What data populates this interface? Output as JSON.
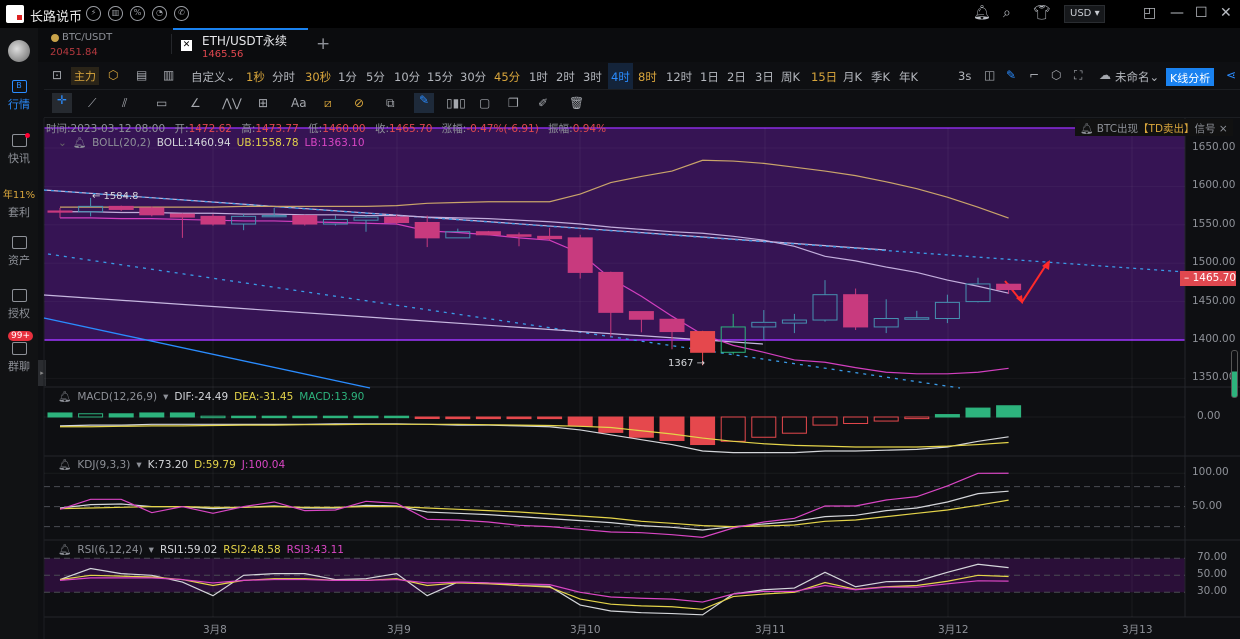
{
  "app": {
    "name": "长路说币",
    "currency": "USD"
  },
  "sidebar": {
    "items": [
      {
        "label": "行情",
        "active": true
      },
      {
        "label": "快讯",
        "dot": true
      },
      {
        "label": "套利",
        "badge": "年11%"
      },
      {
        "label": "资产"
      },
      {
        "label": "授权"
      },
      {
        "label": "群聊",
        "badge": "99+"
      }
    ]
  },
  "tabs": [
    {
      "symbol": "BTC/USDT",
      "price": "20451.84",
      "active": false
    },
    {
      "symbol": "ETH/USDT永续",
      "price": "1465.56",
      "active": true
    }
  ],
  "toolbar": {
    "main_force": "主力",
    "custom": "自定义",
    "timeframes": [
      {
        "label": "1秒",
        "hl": true
      },
      {
        "label": "分时"
      },
      {
        "label": "30秒",
        "hl": true
      },
      {
        "label": "1分"
      },
      {
        "label": "5分"
      },
      {
        "label": "10分"
      },
      {
        "label": "15分"
      },
      {
        "label": "30分"
      },
      {
        "label": "45分",
        "hl": true
      },
      {
        "label": "1时"
      },
      {
        "label": "2时"
      },
      {
        "label": "3时"
      },
      {
        "label": "4时",
        "selected": true
      },
      {
        "label": "8时",
        "hl": true
      },
      {
        "label": "12时"
      },
      {
        "label": "1日"
      },
      {
        "label": "2日"
      },
      {
        "label": "3日"
      },
      {
        "label": "周K"
      },
      {
        "label": "15日",
        "hl": true
      },
      {
        "label": "月K"
      },
      {
        "label": "季K"
      },
      {
        "label": "年K"
      }
    ],
    "refresh": "3s",
    "layout_name": "未命名",
    "kline_analysis": "K线分析",
    "text_tool": "Aa"
  },
  "info": {
    "time_label": "时间:",
    "time": "2023-03-12 08:00",
    "open_label": "开:",
    "open": "1472.62",
    "high_label": "高:",
    "high": "1473.77",
    "low_label": "低:",
    "low": "1460.00",
    "close_label": "收:",
    "close": "1465.70",
    "change_label": "涨幅:",
    "change": "-0.47%(-6.91)",
    "amp_label": "振幅:",
    "amp": "0.94%"
  },
  "signal": {
    "pre": "BTC出现",
    "tag": "【TD卖出】",
    "post": "信号"
  },
  "indicators": {
    "boll": {
      "name": "BOLL(20,2)",
      "boll": "BOLL:1460.94",
      "ub": "UB:1558.78",
      "lb": "LB:1363.10"
    },
    "macd": {
      "name": "MACD(12,26,9)",
      "dif": "DIF:-24.49",
      "dea": "DEA:-31.45",
      "macd": "MACD:13.90"
    },
    "kdj": {
      "name": "KDJ(9,3,3)",
      "k": "K:73.20",
      "d": "D:59.79",
      "j": "J:100.04"
    },
    "rsi": {
      "name": "RSI(6,12,24)",
      "rsi1": "RSI1:59.02",
      "rsi2": "RSI2:48.58",
      "rsi3": "RSI3:43.11"
    }
  },
  "price_axis": [
    "1650.00",
    "1600.00",
    "1550.00",
    "1500.00",
    "1450.00",
    "1400.00",
    "1350.00"
  ],
  "last_price": "1465.70",
  "macd_axis": [
    "0.00"
  ],
  "kdj_axis": [
    "100.00",
    "50.00"
  ],
  "rsi_axis": [
    "70.00",
    "50.00",
    "30.00"
  ],
  "dates": [
    "3月8",
    "3月9",
    "3月10",
    "3月11",
    "3月12",
    "3月13"
  ],
  "annotations": {
    "high_mark": "← 1584.8",
    "low_mark": "1367 →"
  },
  "colors": {
    "up": "#2db37d",
    "down": "#e5484d",
    "accent": "#1a82f0",
    "zone": "#361454"
  },
  "chart_data": {
    "type": "candlestick",
    "interval": "4时",
    "ylim": [
      1340,
      1665
    ],
    "ohlc": [
      [
        1568,
        1572,
        1559,
        1567
      ],
      [
        1567,
        1585,
        1561,
        1574
      ],
      [
        1574,
        1575,
        1568,
        1570
      ],
      [
        1572,
        1574,
        1561,
        1563
      ],
      [
        1564,
        1565,
        1533,
        1560
      ],
      [
        1561,
        1564,
        1549,
        1551
      ],
      [
        1551,
        1564,
        1543,
        1561
      ],
      [
        1561,
        1572,
        1560,
        1562
      ],
      [
        1562,
        1563,
        1549,
        1551
      ],
      [
        1551,
        1562,
        1549,
        1557
      ],
      [
        1556,
        1562,
        1541,
        1560
      ],
      [
        1560,
        1563,
        1550,
        1553
      ],
      [
        1553,
        1562,
        1521,
        1533
      ],
      [
        1533,
        1545,
        1533,
        1541
      ],
      [
        1541,
        1542,
        1536,
        1537
      ],
      [
        1537,
        1540,
        1522,
        1535
      ],
      [
        1535,
        1546,
        1529,
        1532
      ],
      [
        1533,
        1537,
        1480,
        1488
      ],
      [
        1488,
        1489,
        1404,
        1436
      ],
      [
        1437,
        1437,
        1410,
        1427
      ],
      [
        1427,
        1428,
        1388,
        1411
      ],
      [
        1411,
        1412,
        1367,
        1384
      ],
      [
        1384,
        1434,
        1381,
        1417
      ],
      [
        1417,
        1439,
        1400,
        1423
      ],
      [
        1422,
        1434,
        1409,
        1426
      ],
      [
        1426,
        1478,
        1424,
        1459
      ],
      [
        1459,
        1467,
        1413,
        1417
      ],
      [
        1417,
        1453,
        1409,
        1428
      ],
      [
        1427,
        1438,
        1427,
        1429
      ],
      [
        1428,
        1459,
        1422,
        1449
      ],
      [
        1450,
        1481,
        1449,
        1473
      ],
      [
        1472.62,
        1473.77,
        1460.0,
        1465.7
      ]
    ],
    "boll_ub": [
      1573,
      1573,
      1573,
      1573,
      1573,
      1573,
      1574,
      1574,
      1574,
      1574,
      1574,
      1575,
      1578,
      1579,
      1580,
      1580,
      1580,
      1590,
      1605,
      1613,
      1620,
      1634,
      1633,
      1630,
      1625,
      1620,
      1614,
      1606,
      1597,
      1586,
      1573,
      1558.78
    ],
    "boll_mid": [
      1567,
      1567,
      1566,
      1566,
      1565,
      1565,
      1564,
      1564,
      1563,
      1563,
      1562,
      1562,
      1560,
      1559,
      1558,
      1556,
      1554,
      1551,
      1547,
      1544,
      1541,
      1539,
      1535,
      1530,
      1522,
      1509,
      1503,
      1495,
      1488,
      1478,
      1470,
      1460.94
    ],
    "boll_lb": [
      1559,
      1559,
      1558,
      1558,
      1557,
      1556,
      1555,
      1555,
      1554,
      1553,
      1552,
      1551,
      1542,
      1540,
      1537,
      1533,
      1530,
      1513,
      1480,
      1457,
      1431,
      1407,
      1393,
      1384,
      1374,
      1371,
      1364,
      1358,
      1356,
      1356,
      1358,
      1363.1
    ],
    "macd_hist": [
      5,
      4,
      4,
      5,
      5,
      1,
      1,
      1,
      1,
      1,
      1,
      1,
      -1,
      -2,
      -2,
      -2,
      -2,
      -11,
      -19,
      -25,
      -29,
      -34,
      -30,
      -25,
      -20,
      -10,
      -8,
      -5,
      -2,
      3,
      11,
      13.9
    ],
    "dif": [
      -11,
      -10,
      -10,
      -9,
      -9,
      -9,
      -9,
      -9,
      -9,
      -8.5,
      -8.5,
      -8.5,
      -9,
      -10,
      -10,
      -11,
      -12,
      -16,
      -22,
      -28,
      -34,
      -42,
      -44,
      -44,
      -44,
      -42,
      -42,
      -41,
      -40,
      -37,
      -30,
      -24.49
    ],
    "dea": [
      -12,
      -12,
      -11.5,
      -11,
      -11,
      -10.5,
      -10,
      -10,
      -9.5,
      -9.5,
      -9,
      -9,
      -9,
      -9,
      -9.5,
      -10,
      -10.5,
      -11.5,
      -13,
      -17,
      -21,
      -26,
      -30,
      -33,
      -35,
      -36,
      -37,
      -37,
      -37,
      -36,
      -34,
      -31.45
    ],
    "k": [
      48,
      53,
      54,
      50,
      50,
      47,
      49,
      51,
      48,
      48,
      52,
      51,
      42,
      40,
      38,
      35,
      32,
      29,
      26,
      21.5,
      19,
      15,
      20,
      24,
      28,
      35,
      37,
      44,
      48,
      57,
      69.5,
      73.2
    ],
    "d": [
      47,
      48,
      49,
      50,
      50,
      49,
      49,
      50,
      49,
      49,
      50,
      50,
      48,
      46,
      44,
      42,
      39,
      36,
      33,
      28,
      25,
      21.5,
      20,
      21,
      22.5,
      28,
      30,
      35,
      40,
      45,
      52,
      59.79
    ],
    "j": [
      46,
      61,
      61,
      41,
      50,
      40,
      50,
      57,
      44,
      45,
      58,
      55,
      31,
      30,
      27,
      22,
      20,
      16,
      12,
      11,
      8,
      4,
      18,
      27,
      32.5,
      51,
      51,
      60,
      65,
      81,
      100,
      100.04
    ],
    "rsi1": [
      45,
      58,
      52,
      50,
      42,
      26,
      50,
      52,
      52,
      45,
      46,
      52,
      26,
      42,
      41,
      38,
      37,
      15,
      8,
      6,
      5,
      3.5,
      28,
      33,
      35,
      53.5,
      36.5,
      42.5,
      43,
      53.5,
      63,
      59.02
    ],
    "rsi2": [
      45,
      50,
      49,
      48,
      45,
      38,
      44,
      46,
      46,
      44,
      44,
      46,
      38,
      41,
      40,
      38,
      36,
      22,
      16,
      14,
      13,
      10,
      25,
      28,
      30,
      41.5,
      33.5,
      36.5,
      38,
      43,
      50,
      48.58
    ],
    "rsi3": [
      44,
      47,
      47,
      47,
      45,
      41,
      44,
      45,
      45,
      44,
      44,
      45,
      41,
      42,
      41,
      40,
      39,
      30,
      24.5,
      23,
      22,
      18.5,
      28,
      31,
      31,
      38,
      33,
      36,
      36,
      40,
      43.5,
      43.11
    ],
    "kdj_levels": [
      80,
      50,
      20
    ],
    "rsi_levels": [
      70,
      50,
      30
    ]
  }
}
